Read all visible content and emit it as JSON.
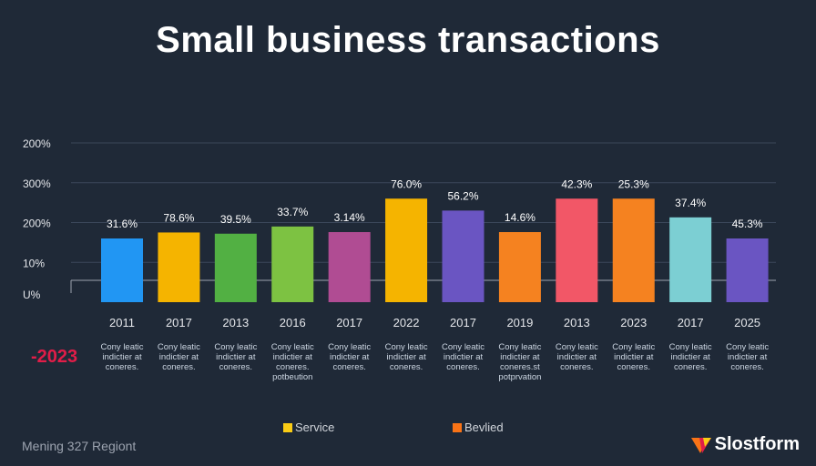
{
  "header": {
    "title": "Small business transactions"
  },
  "side_label": "-2023",
  "legend": [
    {
      "label": "Service",
      "color": "#facc15"
    },
    {
      "label": "Bevlied",
      "color": "#f97316"
    }
  ],
  "footer": {
    "left_text": "Mening 327 Regiont",
    "brand": "Slostform"
  },
  "chart_data": {
    "type": "bar",
    "title": "Small business transactions",
    "y_tick_labels": [
      "200%",
      "300%",
      "200%",
      "10%",
      "U%"
    ],
    "categories": [
      "2011",
      "2017",
      "2013",
      "2016",
      "2017",
      "2022",
      "2017",
      "2019",
      "2013",
      "2023",
      "2017",
      "2025"
    ],
    "values": [
      1.6,
      1.75,
      1.72,
      1.9,
      1.76,
      2.6,
      2.3,
      1.76,
      2.6,
      2.6,
      2.13,
      1.6
    ],
    "value_scale": "U% baseline = 0, 10% = 1, 200% = 2, 300% = 3, 200% = 4 (tick steps as printed)",
    "data_labels": [
      "31.6%",
      "78.6%",
      "39.5%",
      "33.7%",
      "3.14%",
      "76.0%",
      "56.2%",
      "14.6%",
      "42.3%",
      "25.3%",
      "37.4%",
      "45.3%"
    ],
    "bar_colors": [
      "#2196f3",
      "#f5b400",
      "#52b043",
      "#7dc242",
      "#b04c93",
      "#f5b400",
      "#6a55c2",
      "#f58220",
      "#f25767",
      "#f58220",
      "#7ccfd3",
      "#6a55c2"
    ],
    "descriptions": [
      [
        "Cony leatic",
        "indictier at",
        "coneres."
      ],
      [
        "Cony leatic",
        "indictier at",
        "coneres."
      ],
      [
        "Cony leatic",
        "indictier at",
        "coneres."
      ],
      [
        "Cony leatic",
        "indictier at",
        "coneres.",
        "potbeution"
      ],
      [
        "Cony leatic",
        "indictier at",
        "coneres."
      ],
      [
        "Cony leatic",
        "indictier at",
        "coneres."
      ],
      [
        "Cony leatic",
        "indictier at",
        "coneres."
      ],
      [
        "Cony leatic",
        "indictier at",
        "coneres.st",
        "potprvation"
      ],
      [
        "Cony leatic",
        "indictier at",
        "coneres."
      ],
      [
        "Cony leatic",
        "indictier at",
        "coneres."
      ],
      [
        "Cony leatic",
        "indictier at",
        "coneres."
      ],
      [
        "Cony leatic",
        "indictier at",
        "coneres."
      ]
    ],
    "ylim": [
      0,
      4
    ],
    "grid": true,
    "legend_position": "bottom-center"
  }
}
